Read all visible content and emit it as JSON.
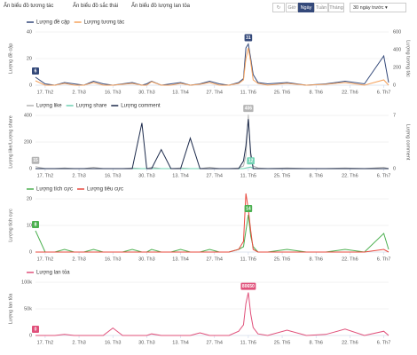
{
  "toolbar": {
    "toggles": [
      "Ẩn biểu đồ tương tác",
      "Ẩn biểu đồ sắc thái",
      "Ẩn biểu đồ lượng lan tỏa"
    ],
    "ranges": [
      "Giờ",
      "Ngày",
      "Tuần",
      "Tháng"
    ],
    "active_range": 1,
    "period": "30 ngày trước"
  },
  "chart_data": [
    {
      "type": "line",
      "ylabel": "Lượng đề cập",
      "y2label": "Lượng tương tác",
      "x": [
        0,
        4,
        8,
        12,
        16,
        20,
        24,
        28,
        32,
        36,
        40,
        44,
        46,
        48,
        52,
        56,
        60,
        64,
        68,
        72,
        76,
        80,
        84,
        86,
        87,
        88,
        89,
        90,
        92,
        96,
        104,
        112,
        120,
        128,
        136,
        144,
        146
      ],
      "xlim": [
        0,
        146
      ],
      "xticks": [
        {
          "value": 4,
          "label": "17. Th2"
        },
        {
          "value": 18,
          "label": "2. Th3"
        },
        {
          "value": 32,
          "label": "16. Th3"
        },
        {
          "value": 46,
          "label": "30. Th3"
        },
        {
          "value": 60,
          "label": "13. Th4"
        },
        {
          "value": 74,
          "label": "27. Th4"
        },
        {
          "value": 88,
          "label": "11. Th5"
        },
        {
          "value": 102,
          "label": "25. Th5"
        },
        {
          "value": 116,
          "label": "8. Th6"
        },
        {
          "value": 130,
          "label": "22. Th6"
        },
        {
          "value": 144,
          "label": "6. Th7"
        }
      ],
      "ylim": [
        0,
        40
      ],
      "yticks": [
        0,
        20,
        40
      ],
      "y2lim": [
        0,
        600
      ],
      "y2ticks": [
        0,
        200,
        400,
        600
      ],
      "grid": true,
      "series": [
        {
          "name": "Lượng đề cập",
          "color": "#34497a",
          "values": [
            6,
            1,
            0,
            2,
            1,
            0,
            3,
            1,
            0,
            1,
            2,
            0,
            1,
            3,
            0,
            1,
            2,
            0,
            1,
            3,
            1,
            0,
            2,
            5,
            28,
            31,
            20,
            8,
            2,
            1,
            2,
            0,
            1,
            3,
            1,
            22,
            2
          ]
        },
        {
          "name": "Lượng tương tác",
          "color": "#f5a25d",
          "axis": "y2",
          "values": [
            50,
            0,
            0,
            20,
            0,
            0,
            30,
            0,
            0,
            10,
            20,
            0,
            0,
            40,
            0,
            0,
            20,
            0,
            10,
            30,
            0,
            0,
            20,
            60,
            300,
            420,
            260,
            60,
            20,
            0,
            20,
            0,
            10,
            30,
            0,
            60,
            0
          ]
        }
      ],
      "annotations": [
        {
          "series": 0,
          "x": 0,
          "value": 6
        },
        {
          "series": 0,
          "x": 88,
          "value": 31
        }
      ]
    },
    {
      "type": "line",
      "ylabel": "Lượng like/Lượng share",
      "y2label": "Lượng comment",
      "x": [
        0,
        4,
        8,
        12,
        16,
        20,
        24,
        28,
        32,
        36,
        40,
        44,
        46,
        48,
        52,
        56,
        60,
        64,
        68,
        72,
        76,
        80,
        84,
        86,
        87,
        88,
        89,
        90,
        92,
        96,
        104,
        112,
        120,
        128,
        136,
        144,
        146
      ],
      "xlim": [
        0,
        146
      ],
      "xticks": [
        {
          "value": 4,
          "label": "17. Th2"
        },
        {
          "value": 18,
          "label": "2. Th3"
        },
        {
          "value": 32,
          "label": "16. Th3"
        },
        {
          "value": 46,
          "label": "30. Th3"
        },
        {
          "value": 60,
          "label": "13. Th4"
        },
        {
          "value": 74,
          "label": "27. Th4"
        },
        {
          "value": 88,
          "label": "11. Th5"
        },
        {
          "value": 102,
          "label": "25. Th5"
        },
        {
          "value": 116,
          "label": "8. Th6"
        },
        {
          "value": 130,
          "label": "22. Th6"
        },
        {
          "value": 144,
          "label": "6. Th7"
        }
      ],
      "ylim": [
        0,
        400
      ],
      "yticks": [
        0,
        200,
        400
      ],
      "y2lim": [
        0,
        7
      ],
      "y2ticks": [
        0,
        7
      ],
      "grid": true,
      "series": [
        {
          "name": "Lượng like",
          "color": "#b4b4b4",
          "values": [
            15,
            0,
            0,
            5,
            0,
            0,
            10,
            0,
            0,
            0,
            5,
            0,
            0,
            10,
            0,
            0,
            5,
            0,
            0,
            10,
            0,
            0,
            5,
            20,
            100,
            406,
            60,
            20,
            5,
            0,
            5,
            0,
            0,
            5,
            0,
            10,
            0
          ]
        },
        {
          "name": "Lượng share",
          "color": "#6fd1b2",
          "values": [
            0,
            0,
            0,
            0,
            0,
            0,
            0,
            0,
            0,
            0,
            0,
            0,
            0,
            0,
            0,
            0,
            0,
            0,
            0,
            0,
            0,
            0,
            0,
            0,
            5,
            8,
            12,
            2,
            0,
            0,
            0,
            0,
            0,
            0,
            0,
            0,
            0
          ]
        },
        {
          "name": "Lượng comment",
          "color": "#1d2b4c",
          "axis": "y2",
          "values": [
            0,
            0,
            0,
            0,
            0,
            0,
            0,
            0,
            0,
            0,
            0,
            6,
            0,
            0,
            2.5,
            0,
            0,
            4,
            0,
            0,
            0,
            0,
            0,
            1,
            3,
            6.5,
            2,
            0,
            0,
            0,
            0,
            0,
            0,
            0,
            0,
            0,
            0
          ]
        }
      ],
      "annotations": [
        {
          "series": 0,
          "x": 0,
          "value": 15
        },
        {
          "series": 0,
          "x": 88,
          "value": 406
        },
        {
          "series": 1,
          "x": 89,
          "value": 12
        }
      ]
    },
    {
      "type": "line",
      "ylabel": "Lượng tích cực",
      "x": [
        0,
        4,
        8,
        12,
        16,
        20,
        24,
        28,
        32,
        36,
        40,
        44,
        46,
        48,
        52,
        56,
        60,
        64,
        68,
        72,
        76,
        80,
        84,
        86,
        87,
        88,
        89,
        90,
        92,
        96,
        104,
        112,
        120,
        128,
        136,
        144,
        146
      ],
      "xlim": [
        0,
        146
      ],
      "xticks": [
        {
          "value": 4,
          "label": "17. Th2"
        },
        {
          "value": 18,
          "label": "2. Th3"
        },
        {
          "value": 32,
          "label": "16. Th3"
        },
        {
          "value": 46,
          "label": "30. Th3"
        },
        {
          "value": 60,
          "label": "13. Th4"
        },
        {
          "value": 74,
          "label": "27. Th4"
        },
        {
          "value": 88,
          "label": "11. Th5"
        },
        {
          "value": 102,
          "label": "25. Th5"
        },
        {
          "value": 116,
          "label": "8. Th6"
        },
        {
          "value": 130,
          "label": "22. Th6"
        },
        {
          "value": 144,
          "label": "6. Th7"
        }
      ],
      "ylim": [
        0,
        20
      ],
      "yticks": [
        0,
        10,
        20
      ],
      "grid": true,
      "series": [
        {
          "name": "Lượng tích cực",
          "color": "#4cb050",
          "values": [
            8,
            0,
            0,
            1,
            0,
            0,
            1,
            0,
            0,
            0,
            1,
            0,
            0,
            1,
            0,
            0,
            1,
            0,
            0,
            1,
            0,
            0,
            1,
            2,
            8,
            14,
            6,
            2,
            0,
            0,
            1,
            0,
            0,
            1,
            0,
            7,
            1
          ]
        },
        {
          "name": "Lượng tiêu cực",
          "color": "#e8483d",
          "values": [
            0,
            0,
            0,
            0,
            0,
            0,
            0,
            0,
            0,
            0,
            0,
            0,
            0,
            0,
            0,
            0,
            0,
            0,
            0,
            0,
            0,
            0,
            1,
            4,
            22,
            16,
            8,
            1,
            0,
            0,
            0,
            0,
            0,
            0,
            0,
            1,
            0
          ]
        }
      ],
      "annotations": [
        {
          "series": 0,
          "x": 0,
          "value": 8
        },
        {
          "series": 0,
          "x": 88,
          "value": 14
        }
      ]
    },
    {
      "type": "line",
      "ylabel": "Lượng lan tỏa",
      "x": [
        0,
        4,
        8,
        12,
        16,
        20,
        24,
        28,
        32,
        36,
        40,
        44,
        46,
        48,
        52,
        56,
        60,
        64,
        68,
        72,
        76,
        80,
        84,
        86,
        87,
        88,
        89,
        90,
        92,
        96,
        104,
        112,
        120,
        128,
        136,
        144,
        146
      ],
      "xlim": [
        0,
        146
      ],
      "xticks": [
        {
          "value": 4,
          "label": "17. Th2"
        },
        {
          "value": 18,
          "label": "2. Th3"
        },
        {
          "value": 32,
          "label": "16. Th3"
        },
        {
          "value": 46,
          "label": "30. Th3"
        },
        {
          "value": 60,
          "label": "13. Th4"
        },
        {
          "value": 74,
          "label": "27. Th4"
        },
        {
          "value": 88,
          "label": "11. Th5"
        },
        {
          "value": 102,
          "label": "25. Th5"
        },
        {
          "value": 116,
          "label": "8. Th6"
        },
        {
          "value": 130,
          "label": "22. Th6"
        },
        {
          "value": 144,
          "label": "6. Th7"
        }
      ],
      "ylim": [
        0,
        100000
      ],
      "yticks": [
        0,
        {
          "value": 50000,
          "label": "50k"
        },
        {
          "value": 100000,
          "label": "100k"
        }
      ],
      "grid": true,
      "series": [
        {
          "name": "Lượng lan tỏa",
          "color": "#e0507a",
          "values": [
            0,
            0,
            0,
            2000,
            0,
            0,
            0,
            0,
            14000,
            0,
            0,
            0,
            0,
            3000,
            0,
            0,
            0,
            0,
            5000,
            0,
            0,
            0,
            8000,
            20000,
            60000,
            80650,
            40000,
            15000,
            3000,
            0,
            10000,
            0,
            2000,
            12000,
            0,
            8000,
            0
          ]
        }
      ],
      "annotations": [
        {
          "series": 0,
          "x": 0,
          "value": 0
        },
        {
          "series": 0,
          "x": 88,
          "value": 80650
        }
      ]
    }
  ]
}
